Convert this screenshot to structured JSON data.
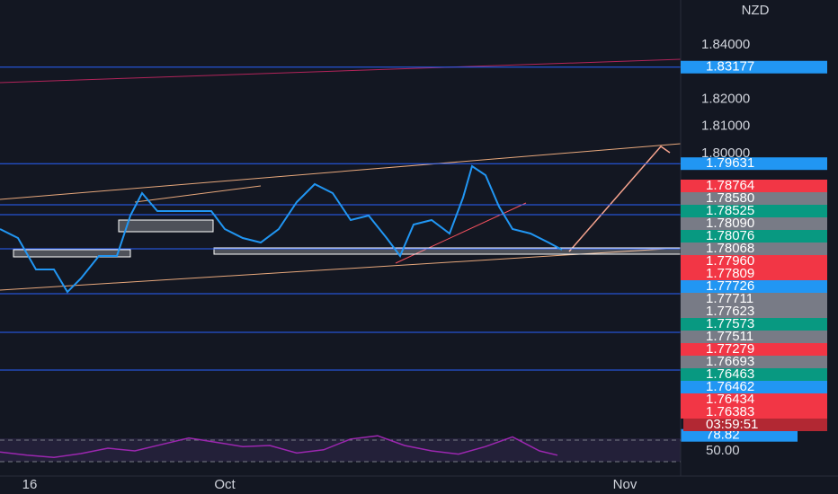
{
  "chart_data": {
    "type": "line",
    "symbol": "NZD",
    "xlim": [
      0,
      75.5
    ],
    "xticks": [
      {
        "value": 3.3,
        "label": "16"
      },
      {
        "value": 25,
        "label": "Oct"
      },
      {
        "value": 69.5,
        "label": "Nov"
      }
    ],
    "ylim": [
      1.69802,
      1.85644
    ],
    "yticks": [
      {
        "value": 1.84,
        "label": "1.84000"
      },
      {
        "value": 1.82,
        "label": "1.82000"
      },
      {
        "value": 1.81,
        "label": "1.81000"
      },
      {
        "value": 1.8,
        "label": "1.80000"
      }
    ],
    "series": [
      {
        "color": "#2196f3",
        "x": [
          0,
          2,
          4,
          6,
          7.5,
          9,
          11,
          13,
          14.5,
          15.8,
          17.5,
          19.5,
          21.5,
          23.5,
          25,
          27,
          29,
          31,
          33,
          35,
          37,
          39,
          41,
          43,
          44.5,
          46,
          48,
          50,
          51.5,
          52.5,
          54,
          55.5,
          57,
          59,
          61,
          62.5
        ],
        "values": [
          1.77228,
          1.76898,
          1.75743,
          1.75743,
          1.74917,
          1.75413,
          1.76238,
          1.76238,
          1.77723,
          1.78548,
          1.77888,
          1.77888,
          1.77888,
          1.77888,
          1.77228,
          1.76898,
          1.76733,
          1.77228,
          1.78218,
          1.78878,
          1.78548,
          1.77558,
          1.77723,
          1.76898,
          1.76238,
          1.77393,
          1.77558,
          1.77063,
          1.78383,
          1.79538,
          1.79208,
          1.78053,
          1.77228,
          1.77063,
          1.76733,
          1.76469
        ]
      }
    ],
    "levels": [
      1.83177,
      1.79631,
      1.78119,
      1.77756,
      1.76502,
      1.74851,
      1.73432,
      1.72046
    ],
    "level_color": "#2962ff",
    "price_tags": [
      {
        "value": 1.83177,
        "color": "#2196f3"
      },
      {
        "value": 1.79631,
        "color": "#2196f3"
      },
      {
        "value": 1.78764,
        "color": "#f23645"
      },
      {
        "value": 1.7858,
        "label": "1.78580",
        "color": "#787b86"
      },
      {
        "value": 1.78525,
        "color": "#089981"
      },
      {
        "value": 1.7809,
        "label": "1.78090",
        "color": "#787b86"
      },
      {
        "value": 1.78076,
        "color": "#089981"
      },
      {
        "value": 1.78068,
        "color": "#787b86"
      },
      {
        "value": 1.7796,
        "label": "1.77960",
        "color": "#f23645"
      },
      {
        "value": 1.77809,
        "color": "#f23645"
      },
      {
        "value": 1.77726,
        "color": "#2196f3"
      },
      {
        "value": 1.77711,
        "color": "#787b86"
      },
      {
        "value": 1.77623,
        "color": "#787b86"
      },
      {
        "value": 1.77573,
        "color": "#089981"
      },
      {
        "value": 1.77511,
        "color": "#787b86"
      },
      {
        "value": 1.77279,
        "color": "#f23645"
      },
      {
        "value": 1.76693,
        "color": "#787b86"
      },
      {
        "value": 1.76463,
        "color": "#089981"
      },
      {
        "value": 1.76462,
        "color": "#2196f3"
      },
      {
        "value": 1.76434,
        "color": "#f23645"
      },
      {
        "value": 1.76383,
        "color": "#f23645"
      }
    ],
    "countdown": "03:59:51",
    "rsi": {
      "color": "#9c27b0",
      "x": [
        0,
        3,
        6,
        9,
        12,
        15,
        18,
        21,
        24,
        27,
        30,
        33,
        36,
        39,
        42,
        45,
        48,
        51,
        54,
        57,
        60,
        62
      ],
      "values": [
        48,
        42,
        38,
        45,
        55,
        50,
        62,
        74,
        66,
        58,
        60,
        46,
        52,
        72,
        78,
        60,
        50,
        44,
        58,
        76,
        50,
        42
      ],
      "ylim": [
        10,
        90
      ],
      "yticks": [
        {
          "value": 50,
          "label": "50.00"
        }
      ],
      "levels": [
        30,
        70
      ],
      "current": 78.82
    }
  }
}
